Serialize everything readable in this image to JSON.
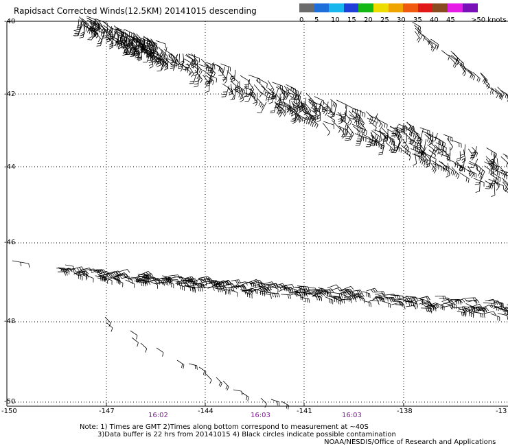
{
  "title": "Rapidsact Corrected Winds(12.5KM) 20141015 descending",
  "legend": {
    "colors": [
      "#6b6b6b",
      "#1e6fd9",
      "#18b6ef",
      "#1e40d8",
      "#14b814",
      "#ecdc00",
      "#f0a400",
      "#ef5a10",
      "#e01818",
      "#8a4a20",
      "#e61ce6",
      "#7a10b8"
    ],
    "labels": [
      "0",
      "5",
      "10",
      "15",
      "20",
      "25",
      "30",
      "35",
      "40",
      "45",
      ">50 knots"
    ]
  },
  "latitude_labels": [
    "-40",
    "-42",
    "-44",
    "-46",
    "-48",
    "-50"
  ],
  "longitude_labels": [
    "-150",
    "-147",
    "-144",
    "-141",
    "-138",
    "-13"
  ],
  "time_labels": [
    "16:02",
    "16:03",
    "16:03"
  ],
  "notes": {
    "line1": "Note: 1) Times are GMT 2)Times along bottom correspond to measurement at ~40S",
    "line2": "3)Data buffer is 22 hrs from 20141015 4) Black circles indicate possible contamination",
    "line3": "NOAA/NESDIS/Office of Research and Applications"
  }
}
